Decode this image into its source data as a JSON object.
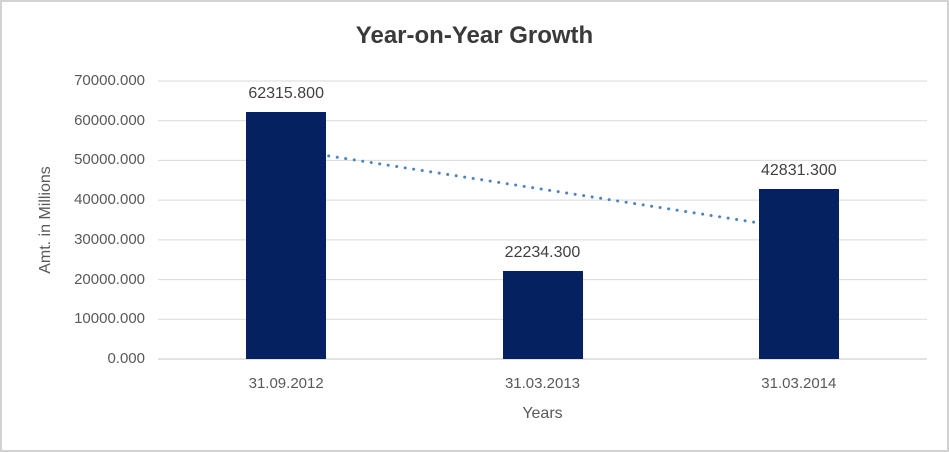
{
  "chart_data": {
    "type": "bar",
    "title": "Year-on-Year Growth",
    "xlabel": "Years",
    "ylabel": "Amt. in Millions",
    "categories": [
      "31.09.2012",
      "31.03.2013",
      "31.03.2014"
    ],
    "values": [
      62315.8,
      22234.3,
      42831.3
    ],
    "data_labels": [
      "62315.800",
      "22234.300",
      "42831.300"
    ],
    "ylim": [
      0,
      70000
    ],
    "y_tick_step": 10000,
    "y_tick_labels": [
      "0.000",
      "10000.000",
      "20000.000",
      "30000.000",
      "40000.000",
      "50000.000",
      "60000.000",
      "70000.000"
    ],
    "grid": "horizontal",
    "legend": "none",
    "trendline": {
      "style": "dotted",
      "start_value": 52800,
      "end_value": 32700
    },
    "colors": {
      "bar": "#062160",
      "trendline": "#4d82c4",
      "gridline": "#d9d9d9",
      "axis_line": "#c6c6c6",
      "title_text": "#3a3a3a",
      "axis_text": "#595959",
      "data_label_text": "#404040"
    }
  }
}
